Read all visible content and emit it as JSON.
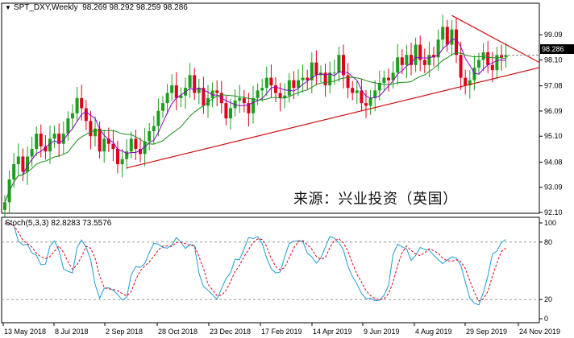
{
  "header": {
    "symbol": "SPT_DXY,Weekly",
    "ohlc": "98.269 98.292 98.259 98.286",
    "arrow": "▼"
  },
  "watermark": "来源：兴业投资（英国）",
  "price_badge": "98.286",
  "sub_header": "Stoch(5,3,3) 82.8283 73.5576",
  "chart_data": [
    {
      "type": "candlestick",
      "title": "SPT_DXY,Weekly",
      "ylim": [
        92.1,
        100.3
      ],
      "y_ticks": [
        99.09,
        98.1,
        97.08,
        96.09,
        95.1,
        94.08,
        93.09,
        92.1
      ],
      "x_tick_labels": [
        "13 May 2018",
        "8 Jul 2018",
        "2 Sep 2018",
        "28 Oct 2018",
        "23 Dec 2018",
        "17 Feb 2019",
        "14 Apr 2019",
        "9 Jun 2019",
        "4 Aug 2019",
        "29 Sep 2019",
        "24 Nov 2019"
      ],
      "bull_color": "#1f9d1f",
      "bear_color": "#e0001b",
      "close": [
        92.5,
        93.4,
        94.0,
        94.3,
        93.7,
        94.3,
        94.6,
        95.2,
        94.7,
        94.5,
        95.0,
        95.2,
        94.8,
        95.2,
        95.8,
        96.0,
        96.6,
        96.2,
        95.7,
        95.1,
        95.4,
        94.5,
        95.0,
        94.8,
        94.6,
        94.0,
        94.2,
        94.5,
        95.0,
        94.6,
        94.4,
        94.9,
        95.3,
        95.5,
        96.1,
        96.4,
        96.8,
        97.1,
        96.6,
        96.7,
        97.0,
        97.5,
        96.8,
        97.0,
        96.3,
        96.6,
        96.9,
        96.8,
        96.4,
        95.8,
        96.2,
        96.5,
        96.6,
        96.4,
        96.0,
        96.6,
        96.9,
        97.0,
        97.4,
        97.1,
        96.8,
        96.6,
        96.7,
        97.3,
        97.0,
        97.3,
        97.4,
        97.3,
        98.0,
        97.5,
        97.6,
        97.1,
        97.6,
        97.6,
        98.3,
        97.5,
        97.0,
        96.8,
        96.9,
        96.4,
        96.3,
        96.6,
        96.9,
        97.2,
        97.4,
        97.3,
        97.6,
        98.2,
        97.9,
        98.3,
        97.9,
        98.7,
        98.1,
        97.9,
        98.3,
        98.2,
        98.9,
        99.4,
        98.7,
        99.3,
        98.3,
        97.4,
        97.1,
        97.3,
        97.8,
        98.1,
        98.4,
        97.9,
        97.7,
        98.3,
        98.2,
        98.29
      ],
      "ma_fast_color": "#8b00c9",
      "ma_slow_color": "#1c8f1c",
      "trendlines": [
        {
          "color": "#d01010",
          "from": {
            "bar": 27,
            "price": 93.85
          },
          "to": {
            "bar": 111,
            "price": 97.8
          }
        },
        {
          "color": "#d01010",
          "from": {
            "bar": 99,
            "price": 99.85
          },
          "to": {
            "bar": 111,
            "price": 98.0
          }
        }
      ],
      "current_price": 98.286
    },
    {
      "type": "line",
      "title": "Stoch(5,3,3)",
      "series": [
        {
          "name": "%K",
          "color": "#1f9bd7",
          "values": [
            100.0,
            99.0,
            97.1,
            81.1,
            76.8,
            77.9,
            68.7,
            66.2,
            56.3,
            57.0,
            75.9,
            81.3,
            71.1,
            51.9,
            49.3,
            47.9,
            74.1,
            82.3,
            74.7,
            61.9,
            35.7,
            21.4,
            31.8,
            32.3,
            29.6,
            25.5,
            19.3,
            22.4,
            45.9,
            54.3,
            53.6,
            57.7,
            68.9,
            78.8,
            77.7,
            74.4,
            73.6,
            77.0,
            84.8,
            79.9,
            73.3,
            77.6,
            76.5,
            47.6,
            33.6,
            29.7,
            25.1,
            20.4,
            31.4,
            41.9,
            47.8,
            62.1,
            61.7,
            73.1,
            84.8,
            83.6,
            85.6,
            78.6,
            63.3,
            52.3,
            47.8,
            48.7,
            64.9,
            78.6,
            80.8,
            81.5,
            80.6,
            68.4,
            64.6,
            58.1,
            63.6,
            74.9,
            85.9,
            83.9,
            79.5,
            71.8,
            54.7,
            43.9,
            36.4,
            26.4,
            21.0,
            21.4,
            18.7,
            19.2,
            24.5,
            34.8,
            67.3,
            77.8,
            75.0,
            72.9,
            60.9,
            66.0,
            74.4,
            72.4,
            71.7,
            66.1,
            61.8,
            57.5,
            61.2,
            64.5,
            63.5,
            56.0,
            38.3,
            21.4,
            16.2,
            14.5,
            27.3,
            44.7,
            67.5,
            70.6,
            79.7,
            82.8
          ]
        },
        {
          "name": "%D",
          "color": "#e0001b",
          "values": [
            99.8,
            99.6,
            97.1,
            90.4,
            81.7,
            78.3,
            74.9,
            68.4,
            64.5,
            62.6,
            64.9,
            70.5,
            75.9,
            69.1,
            59.5,
            51.4,
            56.4,
            64.7,
            75.6,
            73.6,
            62.9,
            44.5,
            32.6,
            31.2,
            30.6,
            29.1,
            26.2,
            23.8,
            28.4,
            40.8,
            49.9,
            55.1,
            59.2,
            65.2,
            71.7,
            75.9,
            75.8,
            75.4,
            79.7,
            79.7,
            78.4,
            76.3,
            76.4,
            64.9,
            52.5,
            36.0,
            30.0,
            24.0,
            24.5,
            29.4,
            38.6,
            49.2,
            55.6,
            64.9,
            72.3,
            79.6,
            83.2,
            82.7,
            75.5,
            63.0,
            54.7,
            50.9,
            53.5,
            63.7,
            73.8,
            80.6,
            81.6,
            77.3,
            72.6,
            64.9,
            62.0,
            63.8,
            74.4,
            81.6,
            83.5,
            79.1,
            70.4,
            57.8,
            46.3,
            38.2,
            29.3,
            24.0,
            21.0,
            19.7,
            20.8,
            26.2,
            38.5,
            55.4,
            68.9,
            75.9,
            71.3,
            67.7,
            65.8,
            68.8,
            73.0,
            71.0,
            68.3,
            63.1,
            60.5,
            60.0,
            61.5,
            59.6,
            52.4,
            39.5,
            27.6,
            18.4,
            20.5,
            28.6,
            44.4,
            58.1,
            70.4,
            73.6
          ]
        }
      ],
      "ylim": [
        0,
        100
      ],
      "y_ticks": [
        100,
        80,
        20,
        0
      ],
      "levels": [
        80,
        20
      ]
    }
  ]
}
